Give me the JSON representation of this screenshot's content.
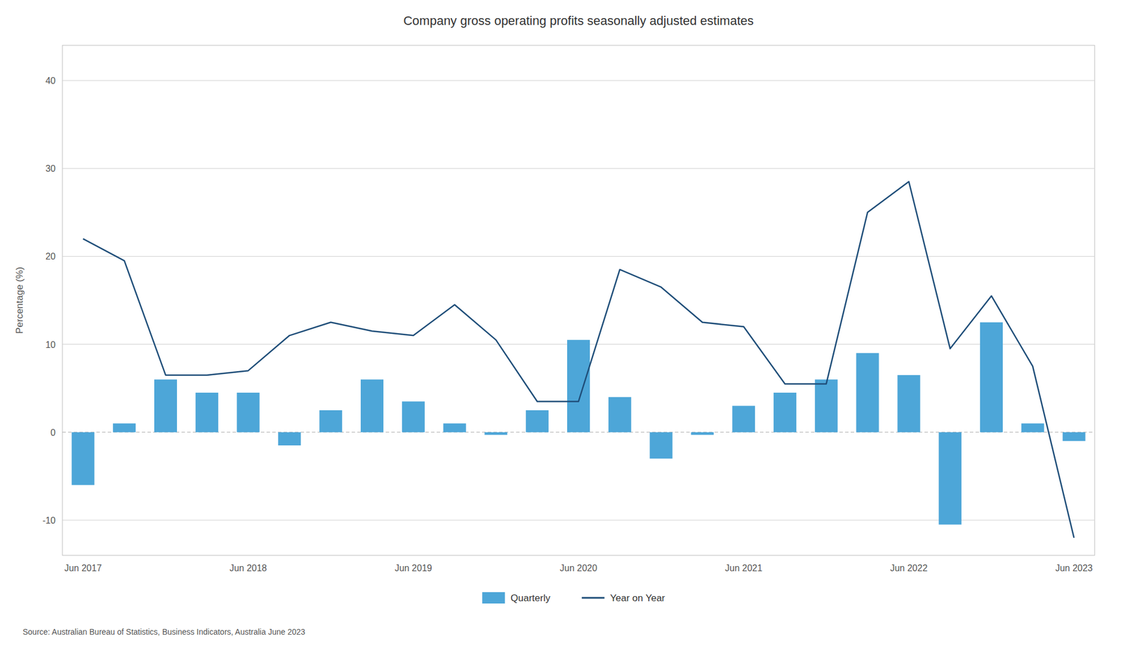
{
  "chart_data": {
    "type": "bar",
    "title": "Company gross operating profits seasonally adjusted estimates",
    "y_label": "Percentage (%)",
    "source": "Source: Australian Bureau of Statistics, Business Indicators, Australia June 2023",
    "categories": [
      "Jun 2017",
      null,
      null,
      null,
      "Jun 2018",
      null,
      null,
      null,
      "Jun 2019",
      null,
      null,
      null,
      "Jun 2020",
      null,
      null,
      null,
      "Jun 2021",
      null,
      null,
      null,
      "Jun 2022",
      null,
      null,
      null,
      "Jun 2023"
    ],
    "series": [
      {
        "name": "Quarterly",
        "type": "bar",
        "color": "#4da6d8",
        "values": [
          -6.0,
          1.0,
          6.0,
          4.5,
          4.5,
          -1.5,
          2.5,
          6.0,
          3.5,
          1.0,
          -0.3,
          2.5,
          10.5,
          4.0,
          -3.0,
          -0.3,
          3.0,
          4.5,
          6.0,
          9.0,
          6.5,
          -10.5,
          12.5,
          1.0,
          -1.0
        ]
      },
      {
        "name": "Year on Year",
        "type": "line",
        "color": "#1f4e79",
        "values": [
          22.0,
          19.5,
          6.5,
          6.5,
          7.0,
          11.0,
          12.5,
          11.5,
          11.0,
          14.5,
          10.5,
          3.5,
          3.5,
          18.5,
          16.5,
          12.5,
          12.0,
          5.5,
          5.5,
          25.0,
          28.5,
          9.5,
          15.5,
          7.5,
          -12.0
        ]
      }
    ],
    "ylim": [
      -14,
      44
    ],
    "yticks": [
      -10,
      0,
      10,
      20,
      30,
      40
    ],
    "grid": true,
    "legend": "bottom"
  }
}
